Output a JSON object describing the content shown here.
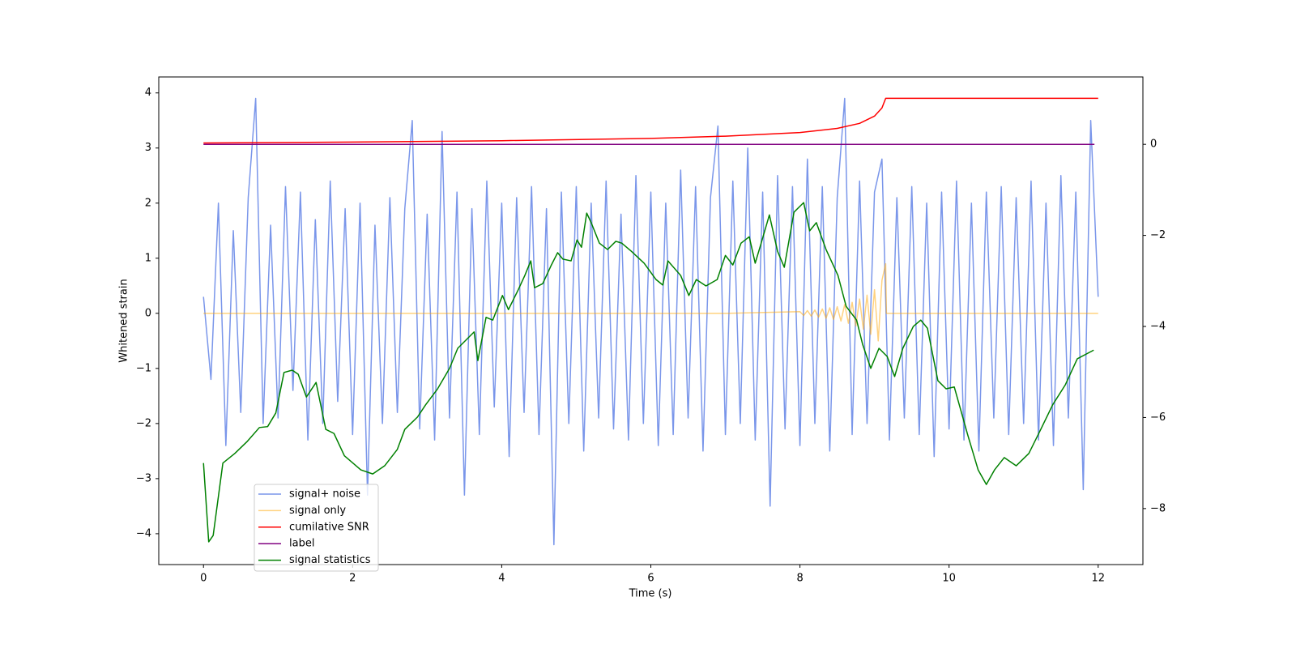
{
  "chart_data": {
    "type": "line",
    "xlabel": "Time (s)",
    "ylabel": "Whitened strain",
    "xlim": [
      -0.6,
      12.6
    ],
    "ylim": [
      -4.56,
      4.29
    ],
    "y2lim": [
      -9.23,
      1.48
    ],
    "xticks": [
      0,
      2,
      4,
      6,
      8,
      10,
      12
    ],
    "yticks": [
      {
        "value": -4,
        "label": "−4"
      },
      {
        "value": -3,
        "label": "−3"
      },
      {
        "value": -2,
        "label": "−2"
      },
      {
        "value": -1,
        "label": "−1"
      },
      0,
      1,
      2,
      3,
      4
    ],
    "y2ticks": [
      {
        "value": -8,
        "label": "−8"
      },
      {
        "value": -6,
        "label": "−6"
      },
      {
        "value": -4,
        "label": "−4"
      },
      {
        "value": -2,
        "label": "−2"
      },
      0
    ],
    "grid": false,
    "legend": "lower left",
    "series": [
      {
        "name": "signal+ noise",
        "color": "royalblue",
        "alpha": 0.7,
        "axis": "y",
        "x": [
          0,
          0.1,
          0.2,
          0.3,
          0.4,
          0.5,
          0.6,
          0.7,
          0.8,
          0.9,
          1,
          1.1,
          1.2,
          1.3,
          1.4,
          1.5,
          1.6,
          1.7,
          1.8,
          1.9,
          2,
          2.1,
          2.2,
          2.3,
          2.4,
          2.5,
          2.6,
          2.7,
          2.8,
          2.9,
          3,
          3.1,
          3.2,
          3.3,
          3.4,
          3.5,
          3.6,
          3.7,
          3.8,
          3.9,
          4,
          4.1,
          4.2,
          4.3,
          4.4,
          4.5,
          4.6,
          4.7,
          4.8,
          4.9,
          5,
          5.1,
          5.2,
          5.3,
          5.4,
          5.5,
          5.6,
          5.7,
          5.8,
          5.9,
          6,
          6.1,
          6.2,
          6.3,
          6.4,
          6.5,
          6.6,
          6.7,
          6.8,
          6.9,
          7,
          7.1,
          7.2,
          7.3,
          7.4,
          7.5,
          7.6,
          7.7,
          7.8,
          7.9,
          8,
          8.1,
          8.2,
          8.3,
          8.4,
          8.5,
          8.6,
          8.7,
          8.8,
          8.9,
          9,
          9.1,
          9.2,
          9.3,
          9.4,
          9.5,
          9.6,
          9.7,
          9.8,
          9.9,
          10,
          10.1,
          10.2,
          10.3,
          10.4,
          10.5,
          10.6,
          10.7,
          10.8,
          10.9,
          11,
          11.1,
          11.2,
          11.3,
          11.4,
          11.5,
          11.6,
          11.7,
          11.8,
          11.9,
          12
        ],
        "values": [
          0.3,
          -1.2,
          2.0,
          -2.4,
          1.5,
          -1.8,
          2.1,
          3.9,
          -2.0,
          1.6,
          -1.9,
          2.3,
          -1.4,
          2.2,
          -2.3,
          1.7,
          -2.0,
          2.4,
          -1.6,
          1.9,
          -2.2,
          2.0,
          -3.3,
          1.6,
          -2.0,
          2.1,
          -1.8,
          1.9,
          3.5,
          -2.1,
          1.8,
          -2.3,
          3.3,
          -1.9,
          2.2,
          -3.3,
          1.9,
          -2.2,
          2.4,
          -1.7,
          2.0,
          -2.6,
          2.1,
          -1.8,
          2.3,
          -2.2,
          1.9,
          -4.2,
          2.2,
          -2.0,
          2.3,
          -2.5,
          2.0,
          -1.9,
          2.4,
          -2.1,
          1.8,
          -2.3,
          2.5,
          -2.0,
          2.2,
          -2.4,
          2.0,
          -2.2,
          2.6,
          -1.9,
          2.3,
          -2.5,
          2.1,
          3.4,
          -2.2,
          2.4,
          -2.0,
          3.0,
          -2.3,
          2.2,
          -3.5,
          2.5,
          -2.1,
          2.3,
          -2.4,
          2.8,
          -2.0,
          2.3,
          -2.5,
          2.1,
          3.9,
          -2.2,
          2.4,
          -2.0,
          2.2,
          2.8,
          -2.3,
          2.1,
          -1.9,
          2.3,
          -2.2,
          2.0,
          -2.6,
          2.2,
          -2.1,
          2.4,
          -2.3,
          2.0,
          -2.5,
          2.2,
          -1.9,
          2.3,
          -2.2,
          2.1,
          -2.0,
          2.4,
          -2.3,
          2.0,
          -2.4,
          2.5,
          -1.9,
          2.2,
          -3.2,
          3.5,
          0.3
        ]
      },
      {
        "name": "signal only",
        "color": "orange",
        "alpha": 0.5,
        "axis": "y",
        "x": [
          0,
          7,
          8,
          8.05,
          8.1,
          8.15,
          8.2,
          8.25,
          8.3,
          8.35,
          8.4,
          8.45,
          8.5,
          8.55,
          8.6,
          8.65,
          8.7,
          8.75,
          8.8,
          8.85,
          8.9,
          8.95,
          9.0,
          9.05,
          9.1,
          9.15,
          9.16,
          12
        ],
        "values": [
          0,
          0,
          0.03,
          -0.04,
          0.05,
          -0.05,
          0.06,
          -0.07,
          0.08,
          -0.09,
          0.1,
          -0.11,
          0.12,
          -0.14,
          0.16,
          -0.18,
          0.2,
          -0.23,
          0.26,
          -0.29,
          0.33,
          -0.38,
          0.43,
          -0.5,
          0.6,
          0.9,
          0,
          0
        ]
      },
      {
        "name": "cumilative SNR",
        "color": "red",
        "alpha": 1,
        "axis": "y2",
        "x": [
          0,
          2,
          4,
          6,
          7,
          8,
          8.5,
          8.8,
          9.0,
          9.1,
          9.15,
          12
        ],
        "values": [
          0.03,
          0.05,
          0.08,
          0.13,
          0.18,
          0.26,
          0.35,
          0.46,
          0.62,
          0.8,
          1.01,
          1.01
        ]
      },
      {
        "name": "label",
        "color": "purple",
        "alpha": 1,
        "axis": "y2",
        "x": [
          0,
          11.95
        ],
        "values": [
          0,
          0
        ]
      },
      {
        "name": "signal statistics",
        "color": "green",
        "alpha": 1,
        "axis": "y2",
        "x": [
          0,
          0.07,
          0.13,
          0.26,
          0.42,
          0.59,
          0.75,
          0.86,
          0.97,
          1.08,
          1.19,
          1.27,
          1.38,
          1.51,
          1.64,
          1.75,
          1.89,
          2.11,
          2.27,
          2.43,
          2.6,
          2.7,
          2.87,
          2.98,
          3.14,
          3.3,
          3.41,
          3.52,
          3.63,
          3.68,
          3.79,
          3.88,
          4.01,
          4.09,
          4.22,
          4.31,
          4.39,
          4.44,
          4.55,
          4.66,
          4.75,
          4.82,
          4.93,
          5.01,
          5.07,
          5.14,
          5.2,
          5.31,
          5.42,
          5.53,
          5.61,
          5.74,
          5.85,
          5.91,
          6.07,
          6.16,
          6.23,
          6.4,
          6.51,
          6.61,
          6.74,
          6.89,
          7.0,
          7.1,
          7.21,
          7.32,
          7.4,
          7.48,
          7.59,
          7.7,
          7.79,
          7.92,
          8.05,
          8.13,
          8.22,
          8.35,
          8.51,
          8.62,
          8.76,
          8.84,
          8.95,
          9.06,
          9.17,
          9.27,
          9.38,
          9.52,
          9.62,
          9.71,
          9.85,
          9.96,
          10.07,
          10.25,
          10.39,
          10.5,
          10.61,
          10.74,
          10.9,
          11.07,
          11.23,
          11.39,
          11.56,
          11.72,
          11.94
        ],
        "values": [
          -7.0,
          -8.73,
          -8.59,
          -7.0,
          -6.79,
          -6.52,
          -6.22,
          -6.2,
          -5.9,
          -5.01,
          -4.96,
          -5.05,
          -5.55,
          -5.23,
          -6.26,
          -6.35,
          -6.84,
          -7.15,
          -7.24,
          -7.06,
          -6.7,
          -6.26,
          -5.99,
          -5.72,
          -5.37,
          -4.92,
          -4.48,
          -4.3,
          -4.12,
          -4.75,
          -3.8,
          -3.86,
          -3.32,
          -3.63,
          -3.2,
          -2.88,
          -2.56,
          -3.15,
          -3.06,
          -2.67,
          -2.38,
          -2.52,
          -2.56,
          -2.1,
          -2.26,
          -1.51,
          -1.72,
          -2.17,
          -2.31,
          -2.13,
          -2.17,
          -2.35,
          -2.52,
          -2.61,
          -2.97,
          -3.09,
          -2.56,
          -2.88,
          -3.32,
          -2.97,
          -3.11,
          -2.97,
          -2.44,
          -2.65,
          -2.17,
          -2.03,
          -2.61,
          -2.17,
          -1.55,
          -2.35,
          -2.7,
          -1.49,
          -1.28,
          -1.9,
          -1.72,
          -2.31,
          -2.88,
          -3.56,
          -3.86,
          -4.39,
          -4.92,
          -4.48,
          -4.66,
          -5.1,
          -4.48,
          -4.0,
          -3.86,
          -4.04,
          -5.19,
          -5.37,
          -5.33,
          -6.38,
          -7.15,
          -7.47,
          -7.15,
          -6.88,
          -7.06,
          -6.79,
          -6.26,
          -5.72,
          -5.28,
          -4.71,
          -4.52
        ]
      }
    ]
  }
}
